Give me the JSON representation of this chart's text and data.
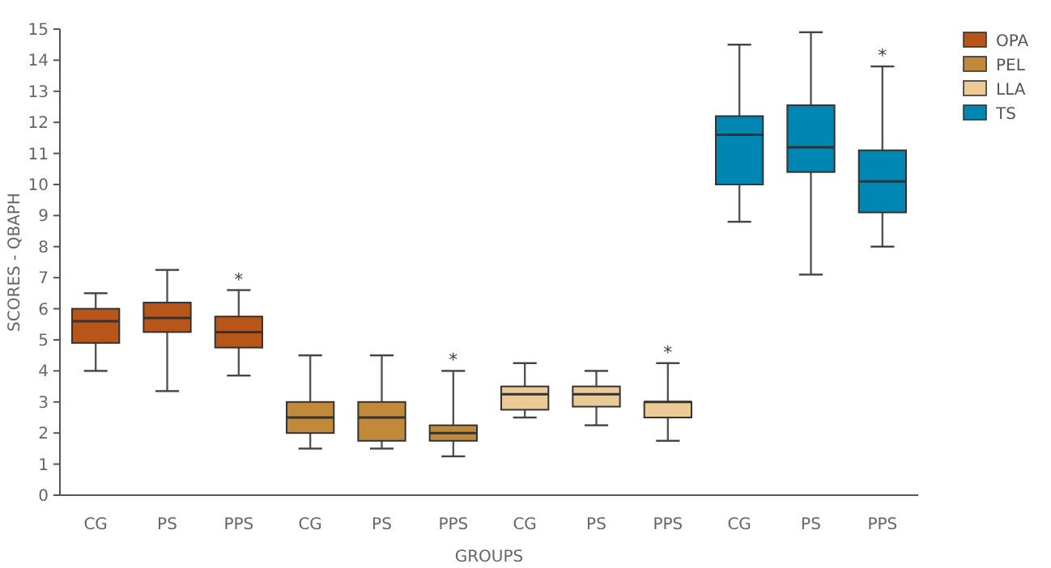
{
  "chart_data": {
    "type": "box",
    "xlabel": "GROUPS",
    "ylabel": "SCORES - QBAPH",
    "categories": [
      "CG",
      "PS",
      "PPS",
      "CG",
      "PS",
      "PPS",
      "CG",
      "PS",
      "PPS",
      "CG",
      "PS",
      "PPS"
    ],
    "ylim": [
      0,
      15
    ],
    "yticks": [
      0,
      1,
      2,
      3,
      4,
      5,
      6,
      7,
      8,
      9,
      10,
      11,
      12,
      13,
      14,
      15
    ],
    "grid": false,
    "legend": "top right",
    "series": [
      {
        "name": "OPA",
        "color": "#b8561a",
        "boxes": [
          {
            "low": 4,
            "q1": 4.9,
            "median": 5.6,
            "q3": 6,
            "high": 6.5
          },
          {
            "low": 3.35,
            "q1": 5.25,
            "median": 5.7,
            "q3": 6.2,
            "high": 7.25
          },
          {
            "low": 3.85,
            "q1": 4.75,
            "median": 5.25,
            "q3": 5.75,
            "high": 6.6
          },
          null,
          null,
          null,
          null,
          null,
          null,
          null,
          null,
          null
        ]
      },
      {
        "name": "PEL",
        "color": "#c08a3a",
        "boxes": [
          null,
          null,
          null,
          {
            "low": 1.5,
            "q1": 2,
            "median": 2.5,
            "q3": 3,
            "high": 4.5
          },
          {
            "low": 1.5,
            "q1": 1.75,
            "median": 2.5,
            "q3": 3,
            "high": 4.5
          },
          {
            "low": 1.25,
            "q1": 1.75,
            "median": 2,
            "q3": 2.25,
            "high": 4
          },
          null,
          null,
          null,
          null,
          null,
          null
        ]
      },
      {
        "name": "LLA",
        "color": "#ecca95",
        "boxes": [
          null,
          null,
          null,
          null,
          null,
          null,
          {
            "low": 2.5,
            "q1": 2.75,
            "median": 3.25,
            "q3": 3.5,
            "high": 4.25
          },
          {
            "low": 2.25,
            "q1": 2.85,
            "median": 3.25,
            "q3": 3.5,
            "high": 4
          },
          {
            "low": 1.75,
            "q1": 2.5,
            "median": 3,
            "q3": 3,
            "high": 4.25
          },
          null,
          null,
          null
        ]
      },
      {
        "name": "TS",
        "color": "#0086b3",
        "boxes": [
          null,
          null,
          null,
          null,
          null,
          null,
          null,
          null,
          null,
          {
            "low": 8.8,
            "q1": 10,
            "median": 11.6,
            "q3": 12.2,
            "high": 14.5
          },
          {
            "low": 7.1,
            "q1": 10.4,
            "median": 11.2,
            "q3": 12.55,
            "high": 14.9
          },
          {
            "low": 8,
            "q1": 9.1,
            "median": 10.1,
            "q3": 11.1,
            "high": 13.8
          }
        ]
      }
    ],
    "annotations": [
      "*",
      "*",
      "*",
      "*"
    ]
  }
}
